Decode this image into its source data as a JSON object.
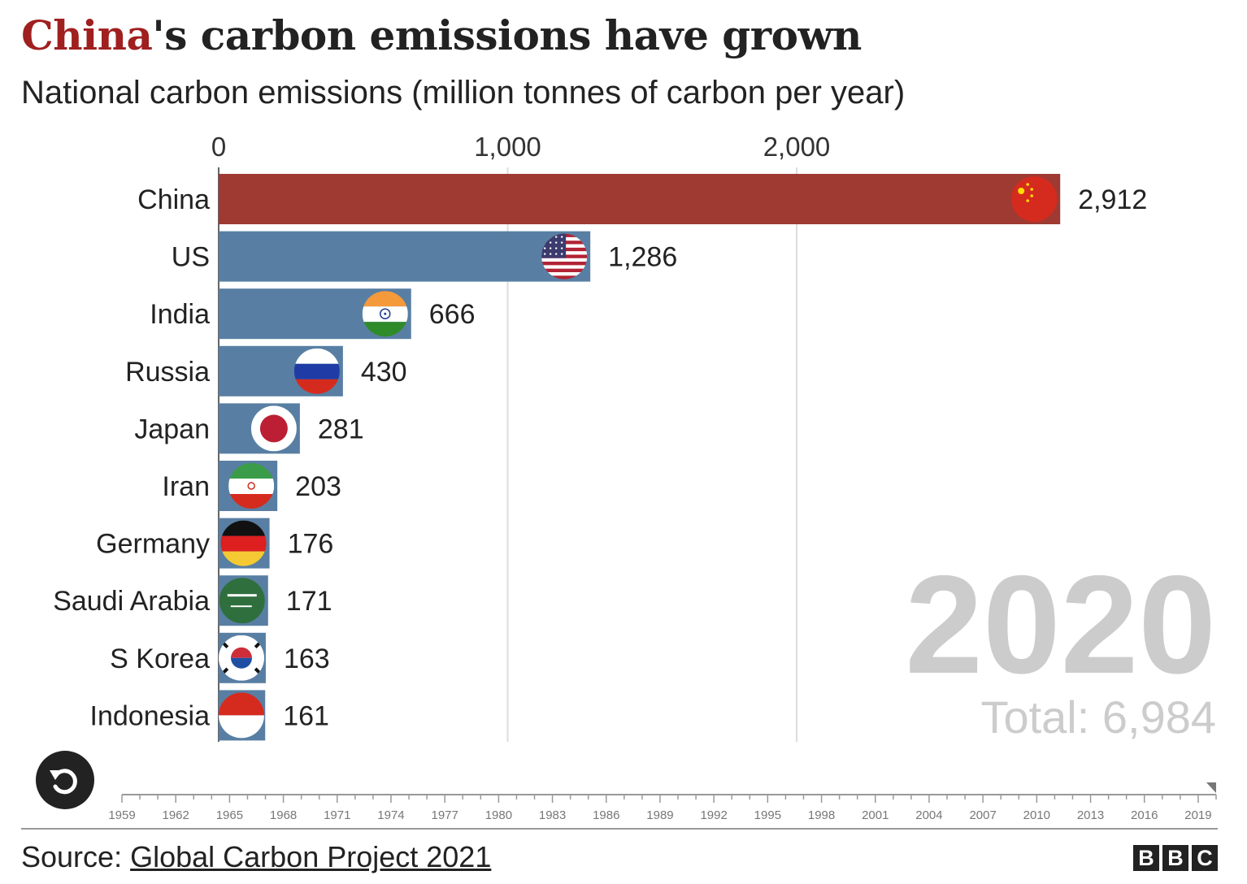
{
  "title": {
    "highlight": "China",
    "rest": "'s carbon emissions have grown",
    "highlight_color": "#a01f1f"
  },
  "subtitle": "National carbon emissions (million tonnes of carbon per year)",
  "chart_data": {
    "type": "bar",
    "orientation": "horizontal",
    "xlim": [
      0,
      3250
    ],
    "x_ticks": [
      0,
      1000,
      2000
    ],
    "x_tick_labels": [
      "0",
      "1,000",
      "2,000"
    ],
    "grid": true,
    "categories": [
      "China",
      "US",
      "India",
      "Russia",
      "Japan",
      "Iran",
      "Germany",
      "Saudi Arabia",
      "S Korea",
      "Indonesia"
    ],
    "values": [
      2912,
      1286,
      666,
      430,
      281,
      203,
      176,
      171,
      163,
      161
    ],
    "value_labels": [
      "2,912",
      "1,286",
      "666",
      "430",
      "281",
      "203",
      "176",
      "171",
      "163",
      "161"
    ],
    "highlight_color": "#9e3a32",
    "bar_color": "#587fa3",
    "flags": [
      "china-flag-icon",
      "us-flag-icon",
      "india-flag-icon",
      "russia-flag-icon",
      "japan-flag-icon",
      "iran-flag-icon",
      "germany-flag-icon",
      "saudi-arabia-flag-icon",
      "south-korea-flag-icon",
      "indonesia-flag-icon"
    ],
    "year": "2020",
    "total_label": "Total: 6,984"
  },
  "timeline": {
    "start": 1959,
    "end": 2020,
    "labels": [
      "1959",
      "1962",
      "1965",
      "1968",
      "1971",
      "1974",
      "1977",
      "1980",
      "1983",
      "1986",
      "1989",
      "1992",
      "1995",
      "1998",
      "2001",
      "2004",
      "2007",
      "2010",
      "2013",
      "2016",
      "2019"
    ],
    "current": 2020
  },
  "replay_icon": "replay-icon",
  "source": {
    "prefix": "Source: ",
    "link": "Global Carbon Project 2021"
  },
  "logo": [
    "B",
    "B",
    "C"
  ]
}
